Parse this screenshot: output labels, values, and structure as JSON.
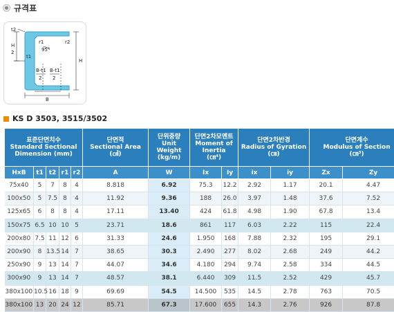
{
  "page_title": "규격표",
  "diagram": {
    "labels": {
      "t2": "t2",
      "h_half": "H",
      "h_half_den": "2",
      "r1": "r1",
      "r2": "r2",
      "angle": "95°",
      "t1": "t1",
      "H": "H",
      "bt1_num_a": "B-t1",
      "bt1_den_a": "2",
      "bt1_num_b": "B-t1",
      "bt1_den_b": "2",
      "B": "B"
    }
  },
  "standard_title": "KS D 3503, 3515/3502",
  "table": {
    "header": {
      "dimension": {
        "ko": "표준단면치수",
        "en": "Standard Sectional Dimension (mm)"
      },
      "area": {
        "ko": "단면적",
        "en": "Sectional Area",
        "unit": "(㎠)"
      },
      "weight": {
        "ko": "단위중량",
        "en": "Unit Weight",
        "unit": "(kg/m)"
      },
      "moment": {
        "ko": "단면2차모멘트",
        "en": "Moment of Inertia",
        "unit": "(㎝⁴)"
      },
      "radius": {
        "ko": "단면2차반경",
        "en": "Radius of Gyration",
        "unit": "(㎝)"
      },
      "modulus": {
        "ko": "단면계수",
        "en": "Modulus of Section",
        "unit": "(㎝³)"
      }
    },
    "subheader": [
      "HxB",
      "t1",
      "t2",
      "r1",
      "r2",
      "A",
      "W",
      "Ix",
      "Iy",
      "ix",
      "iy",
      "Zx",
      "Zy"
    ],
    "rows": [
      [
        "75x40",
        "5",
        "7",
        "8",
        "4",
        "8.818",
        "6.92",
        "75.3",
        "12.2",
        "2.92",
        "1.17",
        "20.1",
        "4.47"
      ],
      [
        "100x50",
        "5",
        "7.5",
        "8",
        "4",
        "11.92",
        "9.36",
        "188",
        "26.0",
        "3.97",
        "1.48",
        "37.6",
        "7.52"
      ],
      [
        "125x65",
        "6",
        "8",
        "8",
        "4",
        "17.11",
        "13.40",
        "424",
        "61.8",
        "4.98",
        "1.90",
        "67.8",
        "13.4"
      ],
      [
        "150x75",
        "6.5",
        "10",
        "10",
        "5",
        "23.71",
        "18.6",
        "861",
        "117",
        "6.03",
        "2.22",
        "115",
        "22.4"
      ],
      [
        "200x80",
        "7.5",
        "11",
        "12",
        "6",
        "31.33",
        "24.6",
        "1.950",
        "168",
        "7.88",
        "2.32",
        "195",
        "29.1"
      ],
      [
        "200x90",
        "8",
        "13.5",
        "14",
        "7",
        "38.65",
        "30.3",
        "2.490",
        "277",
        "8.02",
        "2.68",
        "249",
        "44.2"
      ],
      [
        "250x90",
        "9",
        "13",
        "14",
        "7",
        "44.07",
        "34.6",
        "4.180",
        "294",
        "9.74",
        "2.58",
        "334",
        "44.5"
      ],
      [
        "300x90",
        "9",
        "13",
        "14",
        "7",
        "48.57",
        "38.1",
        "6.440",
        "309",
        "11.5",
        "2.52",
        "429",
        "45.7"
      ],
      [
        "380x100",
        "10.5",
        "16",
        "18",
        "9",
        "69.69",
        "54.5",
        "14.500",
        "535",
        "14.5",
        "2.78",
        "763",
        "70.5"
      ],
      [
        "380x100",
        "13",
        "20",
        "24",
        "12",
        "85.71",
        "67.3",
        "17.600",
        "655",
        "14.3",
        "2.76",
        "926",
        "87.8"
      ]
    ]
  }
}
